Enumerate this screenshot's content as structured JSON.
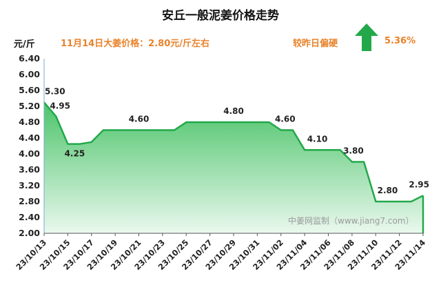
{
  "header": {
    "title": "安丘一般泥姜价格走势",
    "unit": "元/斤",
    "price_note": "11月14日大姜价格：2.80元/斤左右",
    "compare_label": "较昨日偏硬",
    "compare_value": "5.36%",
    "arrow_color": "#22a84a",
    "note_color": "#e8822a"
  },
  "watermark": "中姜网监制（www.jiang7.com）",
  "chart_data": {
    "type": "area",
    "title": "安丘一般泥姜价格走势",
    "ylabel": "元/斤",
    "xlabel": "",
    "ylim": [
      2.0,
      6.4
    ],
    "yticks": [
      "2.00",
      "2.40",
      "2.80",
      "3.20",
      "3.60",
      "4.00",
      "4.40",
      "4.80",
      "5.20",
      "5.60",
      "6.00",
      "6.40"
    ],
    "x_tick_labels": [
      "23/10/13",
      "23/10/15",
      "23/10/17",
      "23/10/19",
      "23/10/21",
      "23/10/23",
      "23/10/25",
      "23/10/27",
      "23/10/29",
      "23/10/31",
      "23/11/02",
      "23/11/04",
      "23/11/06",
      "23/11/08",
      "23/11/10",
      "23/11/12",
      "23/11/14"
    ],
    "x": [
      "23/10/13",
      "23/10/14",
      "23/10/15",
      "23/10/16",
      "23/10/17",
      "23/10/18",
      "23/10/19",
      "23/10/20",
      "23/10/21",
      "23/10/22",
      "23/10/23",
      "23/10/24",
      "23/10/25",
      "23/10/26",
      "23/10/27",
      "23/10/28",
      "23/10/29",
      "23/10/30",
      "23/10/31",
      "23/11/01",
      "23/11/02",
      "23/11/03",
      "23/11/04",
      "23/11/05",
      "23/11/06",
      "23/11/07",
      "23/11/08",
      "23/11/09",
      "23/11/10",
      "23/11/11",
      "23/11/12",
      "23/11/13",
      "23/11/14"
    ],
    "values": [
      5.3,
      4.95,
      4.25,
      4.25,
      4.3,
      4.6,
      4.6,
      4.6,
      4.6,
      4.6,
      4.6,
      4.6,
      4.8,
      4.8,
      4.8,
      4.8,
      4.8,
      4.8,
      4.8,
      4.8,
      4.6,
      4.6,
      4.1,
      4.1,
      4.1,
      4.1,
      3.8,
      3.8,
      2.8,
      2.8,
      2.8,
      2.8,
      2.95
    ],
    "data_labels": [
      {
        "x": "23/10/13",
        "text": "5.30"
      },
      {
        "x": "23/10/14",
        "text": "4.95"
      },
      {
        "x": "23/10/15",
        "text": "4.25"
      },
      {
        "x": "23/10/21",
        "text": "4.60"
      },
      {
        "x": "23/10/29",
        "text": "4.80"
      },
      {
        "x": "23/11/02",
        "text": "4.60"
      },
      {
        "x": "23/11/06",
        "text": "4.10"
      },
      {
        "x": "23/11/08",
        "text": "3.80"
      },
      {
        "x": "23/11/11",
        "text": "2.80"
      },
      {
        "x": "23/11/14",
        "text": "2.95"
      }
    ],
    "line_color": "#22a84a",
    "fill_top_color": "#4cc46a",
    "fill_bottom_color": "#eaf8ee",
    "grid": false,
    "legend": "none"
  }
}
